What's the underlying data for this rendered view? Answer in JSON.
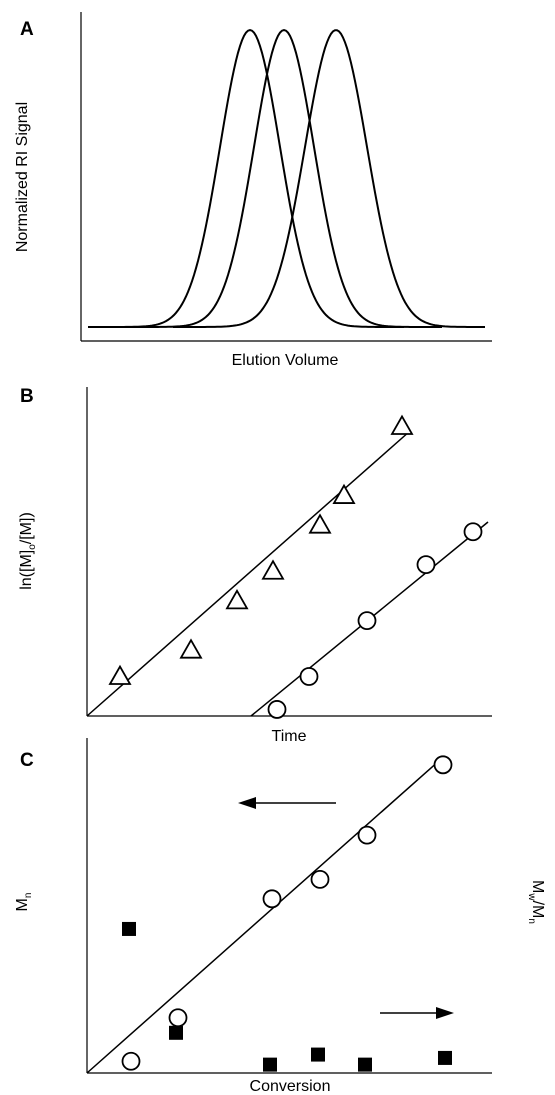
{
  "chart_data": [
    {
      "panel": "A",
      "type": "line",
      "xlabel": "Elution Volume",
      "ylabel": "Normalized RI Signal",
      "series": [
        {
          "peak_x": 250,
          "sigma": 30,
          "start_x": 88,
          "end_x": 404
        },
        {
          "peak_x": 284,
          "sigma": 30,
          "start_x": 122,
          "end_x": 443
        },
        {
          "peak_x": 336,
          "sigma": 31,
          "start_x": 173,
          "end_x": 486
        }
      ],
      "xlim": [
        88,
        486
      ],
      "ylim": [
        0,
        1
      ]
    },
    {
      "panel": "B",
      "type": "scatter",
      "xlabel": "Time",
      "ylabel": "ln([M]o/[M])",
      "series": [
        {
          "marker": "triangle",
          "x": [
            120,
            191,
            237,
            273,
            320,
            344,
            402
          ],
          "y": [
            0.12,
            0.2,
            0.35,
            0.44,
            0.58,
            0.67,
            0.88
          ]
        },
        {
          "marker": "circle",
          "x": [
            277,
            309,
            367,
            426,
            473
          ],
          "y": [
            0.02,
            0.12,
            0.29,
            0.46,
            0.56
          ]
        }
      ],
      "xlim": [
        87,
        487
      ],
      "ylim": [
        0,
        1
      ]
    },
    {
      "panel": "C",
      "type": "scatter",
      "xlabel": "Conversion",
      "ylabel": "Mn",
      "ylabel_right": "Mw/Mn",
      "series": [
        {
          "marker": "circle",
          "x": [
            131,
            178,
            272,
            320,
            367,
            443
          ],
          "y": [
            0.035,
            0.165,
            0.52,
            0.578,
            0.71,
            0.92
          ]
        },
        {
          "marker": "square",
          "x": [
            129,
            176,
            270,
            318,
            365,
            445
          ],
          "y": [
            0.43,
            0.12,
            0.025,
            0.055,
            0.025,
            0.045
          ]
        }
      ],
      "xlim": [
        87,
        487
      ],
      "ylim": [
        0,
        1
      ]
    }
  ]
}
